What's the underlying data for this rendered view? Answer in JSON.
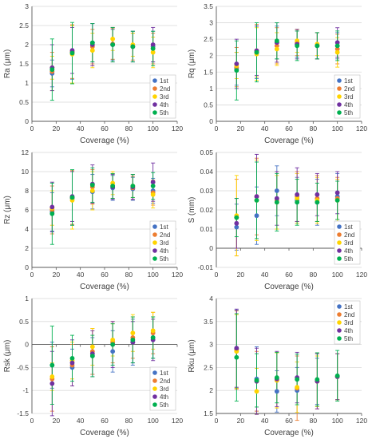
{
  "colors": {
    "1st": "#4472C4",
    "2nd": "#ED7D31",
    "3rd": "#FFD400",
    "4th": "#7030A0",
    "5th": "#00B050",
    "grid": "#d9d9d9",
    "axis": "#595959"
  },
  "legend_labels": [
    "1st",
    "2nd",
    "3rd",
    "4th",
    "5th"
  ],
  "chart_data": [
    {
      "type": "scatter",
      "xlabel": "Coverage (%)",
      "ylabel": "Ra (μm)",
      "xlim": [
        0,
        120
      ],
      "ylim": [
        0,
        3
      ],
      "xticks": [
        "0",
        "20",
        "40",
        "60",
        "80",
        "100",
        "120"
      ],
      "yticks": [
        "0",
        "0.5",
        "1",
        "1.5",
        "2",
        "2.5",
        "3"
      ],
      "grid": "horizontal",
      "legend_position": "bottom-right",
      "error_bars": true,
      "x": [
        16.7,
        33.3,
        50,
        66.7,
        83.3,
        100
      ],
      "series": [
        {
          "name": "1st",
          "values": [
            1.25,
            1.8,
            2.05,
            2.0,
            1.95,
            1.95
          ],
          "err": [
            0.35,
            0.7,
            0.5,
            0.4,
            0.4,
            0.4
          ]
        },
        {
          "name": "2nd",
          "values": [
            1.3,
            1.82,
            1.95,
            2.02,
            1.95,
            1.9
          ],
          "err": [
            0.5,
            0.7,
            0.45,
            0.4,
            0.35,
            0.4
          ]
        },
        {
          "name": "3rd",
          "values": [
            1.4,
            1.75,
            1.85,
            2.15,
            2.0,
            1.8
          ],
          "err": [
            0.3,
            0.75,
            0.45,
            0.3,
            0.3,
            0.4
          ]
        },
        {
          "name": "4th",
          "values": [
            1.4,
            1.85,
            2.0,
            2.0,
            1.95,
            2.0
          ],
          "err": [
            0.6,
            0.6,
            0.55,
            0.45,
            0.4,
            0.45
          ]
        },
        {
          "name": "5th",
          "values": [
            1.35,
            1.78,
            2.05,
            2.0,
            1.95,
            1.9
          ],
          "err": [
            0.8,
            0.8,
            0.5,
            0.45,
            0.4,
            0.45
          ]
        }
      ]
    },
    {
      "type": "scatter",
      "xlabel": "Coverage (%)",
      "ylabel": "Rq (μm)",
      "xlim": [
        0,
        120
      ],
      "ylim": [
        0,
        3.5
      ],
      "xticks": [
        "0",
        "20",
        "40",
        "60",
        "80",
        "100",
        "120"
      ],
      "yticks": [
        "0",
        "0.5",
        "1",
        "1.5",
        "2",
        "2.5",
        "3",
        "3.5"
      ],
      "grid": "horizontal",
      "legend_position": "bottom-right",
      "error_bars": true,
      "x": [
        16.7,
        33.3,
        50,
        66.7,
        83.3,
        100
      ],
      "series": [
        {
          "name": "1st",
          "values": [
            1.6,
            2.1,
            2.4,
            2.35,
            2.3,
            2.3
          ],
          "err": [
            0.5,
            0.8,
            0.5,
            0.4,
            0.4,
            0.4
          ]
        },
        {
          "name": "2nd",
          "values": [
            1.65,
            2.15,
            2.3,
            2.4,
            2.3,
            2.2
          ],
          "err": [
            0.6,
            0.8,
            0.55,
            0.4,
            0.4,
            0.45
          ]
        },
        {
          "name": "3rd",
          "values": [
            1.7,
            2.05,
            2.2,
            2.45,
            2.35,
            2.1
          ],
          "err": [
            0.4,
            0.8,
            0.5,
            0.35,
            0.35,
            0.45
          ]
        },
        {
          "name": "4th",
          "values": [
            1.75,
            2.15,
            2.4,
            2.35,
            2.3,
            2.4
          ],
          "err": [
            0.75,
            0.75,
            0.6,
            0.45,
            0.4,
            0.45
          ]
        },
        {
          "name": "5th",
          "values": [
            1.55,
            2.1,
            2.45,
            2.3,
            2.3,
            2.3
          ],
          "err": [
            0.9,
            0.9,
            0.55,
            0.45,
            0.4,
            0.45
          ]
        }
      ]
    },
    {
      "type": "scatter",
      "xlabel": "Coverage (%)",
      "ylabel": "Rz (μm)",
      "xlim": [
        0,
        120
      ],
      "ylim": [
        0,
        12
      ],
      "xticks": [
        "0",
        "20",
        "40",
        "60",
        "80",
        "100",
        "120"
      ],
      "yticks": [
        "0",
        "2",
        "4",
        "6",
        "8",
        "10",
        "12"
      ],
      "grid": "horizontal",
      "legend_position": "bottom-right",
      "error_bars": true,
      "x": [
        16.7,
        33.3,
        50,
        66.7,
        83.3,
        100
      ],
      "series": [
        {
          "name": "1st",
          "values": [
            5.8,
            7.2,
            7.9,
            8.3,
            8.2,
            8.0
          ],
          "err": [
            2.0,
            2.8,
            1.8,
            1.3,
            1.2,
            1.3
          ]
        },
        {
          "name": "2nd",
          "values": [
            6.0,
            7.3,
            8.4,
            8.5,
            8.3,
            7.8
          ],
          "err": [
            2.5,
            2.8,
            1.8,
            1.3,
            1.2,
            1.3
          ]
        },
        {
          "name": "3rd",
          "values": [
            6.2,
            7.0,
            8.0,
            8.8,
            8.5,
            7.6
          ],
          "err": [
            1.8,
            3.0,
            2.0,
            1.2,
            1.2,
            1.4
          ]
        },
        {
          "name": "4th",
          "values": [
            6.3,
            7.4,
            8.7,
            8.4,
            8.4,
            8.9
          ],
          "err": [
            2.6,
            2.6,
            2.0,
            1.3,
            1.3,
            2.0
          ]
        },
        {
          "name": "5th",
          "values": [
            5.6,
            7.3,
            8.6,
            8.5,
            8.5,
            8.5
          ],
          "err": [
            3.2,
            2.9,
            1.8,
            1.3,
            1.2,
            1.4
          ]
        }
      ]
    },
    {
      "type": "scatter",
      "xlabel": "Coverage (%)",
      "ylabel": "S (mm)",
      "xlim": [
        0,
        120
      ],
      "ylim": [
        -0.01,
        0.05
      ],
      "xticks": [
        "0",
        "20",
        "40",
        "60",
        "80",
        "100",
        "120"
      ],
      "yticks": [
        "-0.01",
        "0",
        "0.01",
        "0.02",
        "0.03",
        "0.04",
        "0.05"
      ],
      "grid": "horizontal",
      "legend_position": "bottom-right",
      "error_bars": true,
      "x": [
        16.7,
        33.3,
        50,
        66.7,
        83.3,
        100
      ],
      "series": [
        {
          "name": "1st",
          "values": [
            0.011,
            0.017,
            0.03,
            0.025,
            0.024,
            0.027
          ],
          "err": [
            0.012,
            0.015,
            0.013,
            0.012,
            0.012,
            0.012
          ]
        },
        {
          "name": "2nd",
          "values": [
            0.016,
            0.027,
            0.025,
            0.027,
            0.026,
            0.026
          ],
          "err": [
            0.02,
            0.02,
            0.015,
            0.013,
            0.012,
            0.011
          ]
        },
        {
          "name": "3rd",
          "values": [
            0.017,
            0.025,
            0.024,
            0.026,
            0.025,
            0.025
          ],
          "err": [
            0.021,
            0.021,
            0.014,
            0.013,
            0.012,
            0.011
          ]
        },
        {
          "name": "4th",
          "values": [
            0.013,
            0.027,
            0.026,
            0.028,
            0.028,
            0.029
          ],
          "err": [
            0.013,
            0.022,
            0.014,
            0.014,
            0.011,
            0.011
          ]
        },
        {
          "name": "5th",
          "values": [
            0.016,
            0.025,
            0.024,
            0.024,
            0.024,
            0.025
          ],
          "err": [
            0.01,
            0.02,
            0.015,
            0.012,
            0.01,
            0.01
          ]
        }
      ]
    },
    {
      "type": "scatter",
      "xlabel": "Coverage (%)",
      "ylabel": "Rsk (μm)",
      "xlim": [
        0,
        120
      ],
      "ylim": [
        -1.5,
        1
      ],
      "xticks": [
        "0",
        "20",
        "40",
        "60",
        "80",
        "100",
        "120"
      ],
      "yticks": [
        "-1.5",
        "-1",
        "-0.5",
        "0",
        "0.5",
        "1"
      ],
      "grid": "horizontal",
      "legend_position": "bottom-right",
      "error_bars": true,
      "x": [
        16.7,
        33.3,
        50,
        66.7,
        83.3,
        100
      ],
      "series": [
        {
          "name": "1st",
          "values": [
            -0.45,
            -0.5,
            -0.25,
            -0.15,
            0.05,
            0.15
          ],
          "err": [
            0.5,
            0.4,
            0.4,
            0.45,
            0.5,
            0.45
          ]
        },
        {
          "name": "2nd",
          "values": [
            -0.75,
            -0.45,
            -0.15,
            0.05,
            0.15,
            0.25
          ],
          "err": [
            0.7,
            0.45,
            0.5,
            0.45,
            0.45,
            0.45
          ]
        },
        {
          "name": "3rd",
          "values": [
            -0.7,
            -0.35,
            -0.05,
            0.1,
            0.25,
            0.3
          ],
          "err": [
            0.3,
            0.4,
            0.4,
            0.35,
            0.4,
            0.4
          ]
        },
        {
          "name": "4th",
          "values": [
            -0.85,
            -0.4,
            -0.2,
            0.0,
            0.05,
            0.1
          ],
          "err": [
            0.7,
            0.5,
            0.5,
            0.5,
            0.45,
            0.45
          ]
        },
        {
          "name": "5th",
          "values": [
            -0.45,
            -0.3,
            -0.25,
            0.0,
            0.1,
            0.15
          ],
          "err": [
            0.85,
            0.5,
            0.45,
            0.45,
            0.5,
            0.45
          ]
        }
      ]
    },
    {
      "type": "scatter",
      "xlabel": "Coverage (%)",
      "ylabel": "Rku (μm)",
      "xlim": [
        0,
        120
      ],
      "ylim": [
        1.5,
        4
      ],
      "xticks": [
        "0",
        "20",
        "40",
        "60",
        "80",
        "100",
        "120"
      ],
      "yticks": [
        "1.5",
        "2",
        "2.5",
        "3",
        "3.5",
        "4"
      ],
      "grid": "horizontal",
      "legend_position": "top-right",
      "error_bars": true,
      "x": [
        16.7,
        33.3,
        50,
        66.7,
        83.3,
        100
      ],
      "series": [
        {
          "name": "1st",
          "values": [
            2.9,
            2.25,
            1.98,
            2.0,
            2.2,
            2.3
          ],
          "err": [
            0.85,
            0.7,
            0.45,
            0.5,
            0.5,
            0.5
          ]
        },
        {
          "name": "2nd",
          "values": [
            2.88,
            2.2,
            2.22,
            2.05,
            2.2,
            2.3
          ],
          "err": [
            0.85,
            0.65,
            0.6,
            0.7,
            0.6,
            0.5
          ]
        },
        {
          "name": "3rd",
          "values": [
            2.85,
            1.98,
            2.22,
            2.07,
            2.2,
            2.3
          ],
          "err": [
            0.8,
            0.5,
            0.6,
            0.55,
            0.55,
            0.5
          ]
        },
        {
          "name": "4th",
          "values": [
            2.92,
            2.2,
            2.25,
            2.28,
            2.2,
            2.3
          ],
          "err": [
            0.85,
            0.72,
            0.6,
            0.55,
            0.6,
            0.5
          ]
        },
        {
          "name": "5th",
          "values": [
            2.72,
            2.22,
            2.28,
            2.24,
            2.24,
            2.32
          ],
          "err": [
            0.95,
            0.58,
            0.55,
            0.55,
            0.58,
            0.55
          ]
        }
      ]
    }
  ]
}
